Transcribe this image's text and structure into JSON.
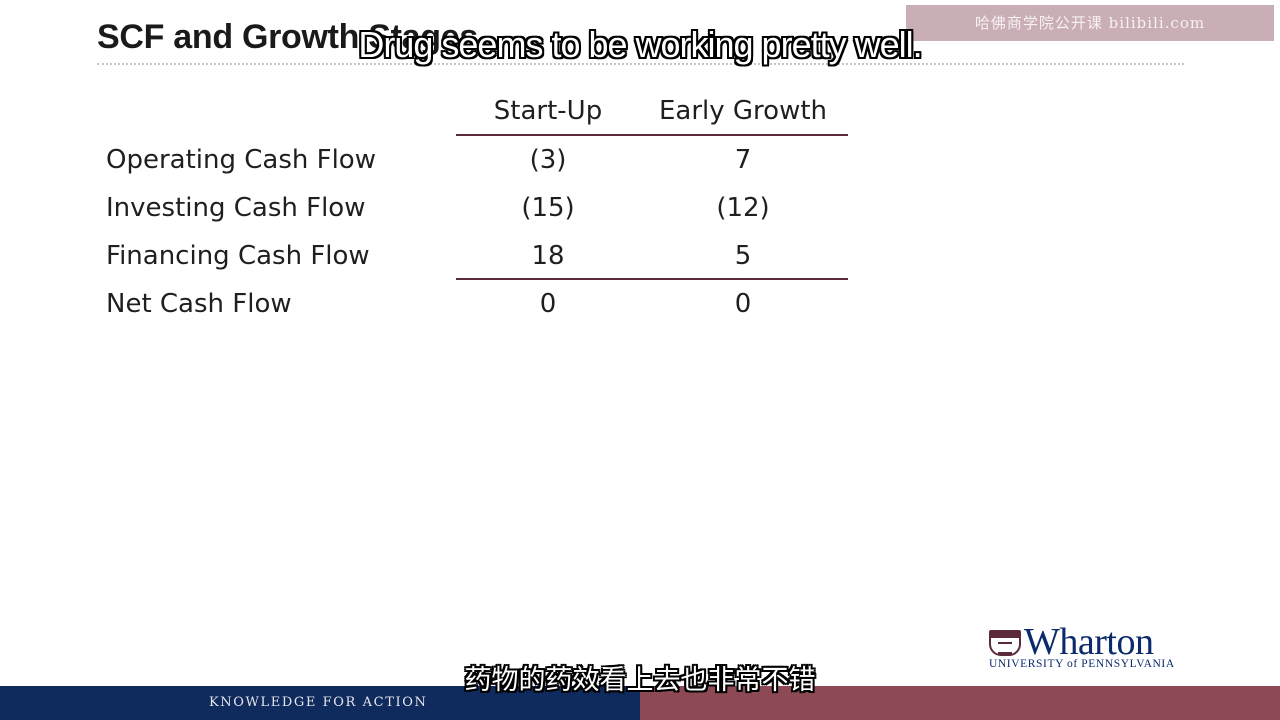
{
  "slide": {
    "title": "SCF and Growth Stages",
    "watermark": "哈佛商学院公开课 bilibili.com"
  },
  "subtitles": {
    "en": "Drug seems to be working pretty well.",
    "zh": "药物的药效看上去也非常不错"
  },
  "table": {
    "columns": [
      "Start-Up",
      "Early Growth"
    ],
    "rows": [
      {
        "label": "Operating Cash Flow",
        "values": [
          "(3)",
          "7"
        ]
      },
      {
        "label": "Investing Cash Flow",
        "values": [
          "(15)",
          "(12)"
        ]
      },
      {
        "label": "Financing Cash Flow",
        "values": [
          "18",
          "5"
        ]
      },
      {
        "label": "Net Cash Flow",
        "values": [
          "0",
          "0"
        ]
      }
    ]
  },
  "logo": {
    "name": "Wharton",
    "subtitle": "UNIVERSITY of PENNSYLVANIA"
  },
  "footer": {
    "tagline": "KNOWLEDGE FOR ACTION",
    "colors": {
      "left": "#0f2a5c",
      "right": "#8d4a55"
    }
  }
}
